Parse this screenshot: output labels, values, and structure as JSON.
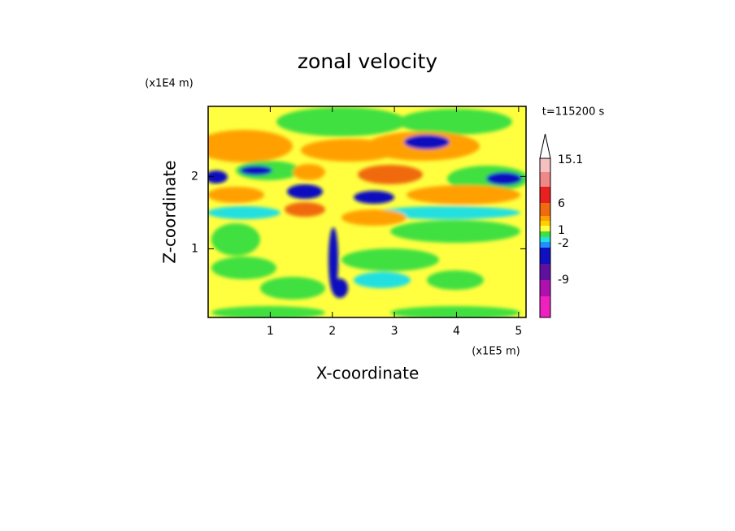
{
  "chart_data": {
    "type": "contour",
    "title": "zonal velocity",
    "x_label": "X-coordinate",
    "y_label": "Z-coordinate",
    "x_unit": "(x1E5 m)",
    "y_unit": "(x1E4 m)",
    "time_label": "t=115200 s",
    "xlim": [
      0,
      5.12
    ],
    "ylim": [
      0.05,
      2.97
    ],
    "xticks": [
      1,
      2,
      3,
      4,
      5
    ],
    "yticks": [
      1,
      2
    ],
    "colorbar": {
      "ticks": [
        15.1,
        6,
        1,
        -2,
        -9
      ],
      "colors": [
        "#f6c0c0",
        "#f08888",
        "#e82020",
        "#f06a10",
        "#ffa000",
        "#ffd000",
        "#ffff40",
        "#40e040",
        "#20e0e0",
        "#2090ff",
        "#1010c0",
        "#6010a0",
        "#b010b0",
        "#f020c0"
      ]
    }
  }
}
